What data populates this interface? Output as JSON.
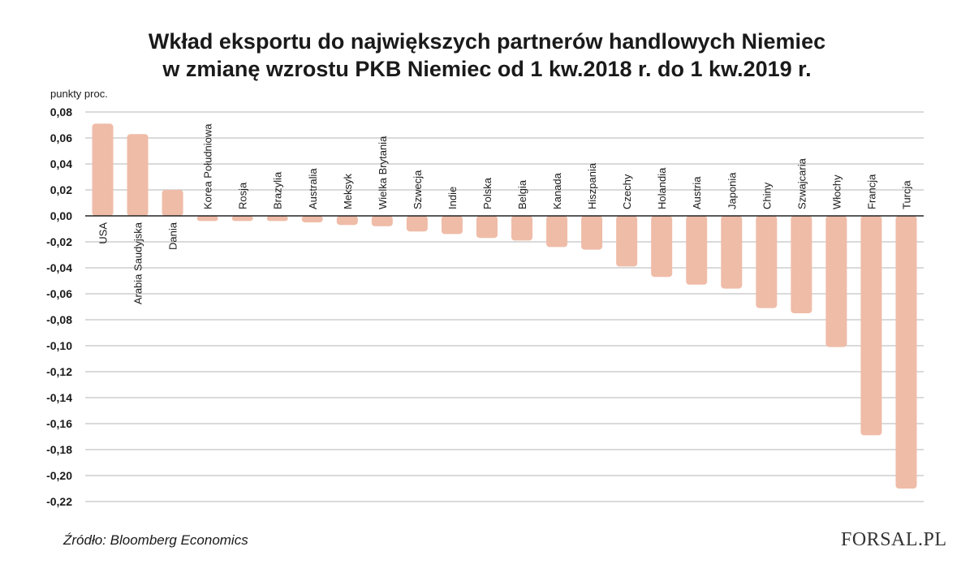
{
  "title": {
    "line1": "Wkład eksportu do największych partnerów handlowych Niemiec",
    "line2": "w zmianę wzrostu PKB Niemiec od 1 kw.2018 r. do 1 kw.2019 r."
  },
  "source": "Źródło: Bloomberg Economics",
  "logo": {
    "text": "FORSAL.PL",
    "accent_color": "#b22a2a"
  },
  "colors": {
    "bar": "#efbca8",
    "grid": "#b5b5b5",
    "zero_line": "#222222"
  },
  "chart_data": {
    "type": "bar",
    "title": "Wkład eksportu do największych partnerów handlowych Niemiec w zmianę wzrostu PKB Niemiec od 1 kw.2018 r. do 1 kw.2019 r.",
    "ylabel": "punkty proc.",
    "ylim": [
      -0.22,
      0.08
    ],
    "yticks": [
      0.08,
      0.06,
      0.04,
      0.02,
      0.0,
      -0.02,
      -0.04,
      -0.06,
      -0.08,
      -0.1,
      -0.12,
      -0.14,
      -0.16,
      -0.18,
      -0.2,
      -0.22
    ],
    "ytick_labels": [
      "0,08",
      "0,06",
      "0,04",
      "0,02",
      "0,00",
      "-0,02",
      "-0,04",
      "-0,06",
      "-0,08",
      "-0,10",
      "-0,12",
      "-0,14",
      "-0,16",
      "-0,18",
      "-0,20",
      "-0,22"
    ],
    "grid": true,
    "categories": [
      "USA",
      "Arabia Saudyjska",
      "Dania",
      "Korea Południowa",
      "Rosja",
      "Brazylia",
      "Australia",
      "Meksyk",
      "Wielka Brytania",
      "Szwecja",
      "Indie",
      "Polska",
      "Belgia",
      "Kanada",
      "Hiszpania",
      "Czechy",
      "Holandia",
      "Austria",
      "Japonia",
      "Chiny",
      "Szwajcaria",
      "Włochy",
      "Francja",
      "Turcja"
    ],
    "values": [
      0.071,
      0.063,
      0.02,
      -0.004,
      -0.004,
      -0.004,
      -0.005,
      -0.007,
      -0.008,
      -0.012,
      -0.014,
      -0.017,
      -0.019,
      -0.024,
      -0.026,
      -0.039,
      -0.047,
      -0.053,
      -0.056,
      -0.071,
      -0.075,
      -0.101,
      -0.169,
      -0.21
    ]
  }
}
